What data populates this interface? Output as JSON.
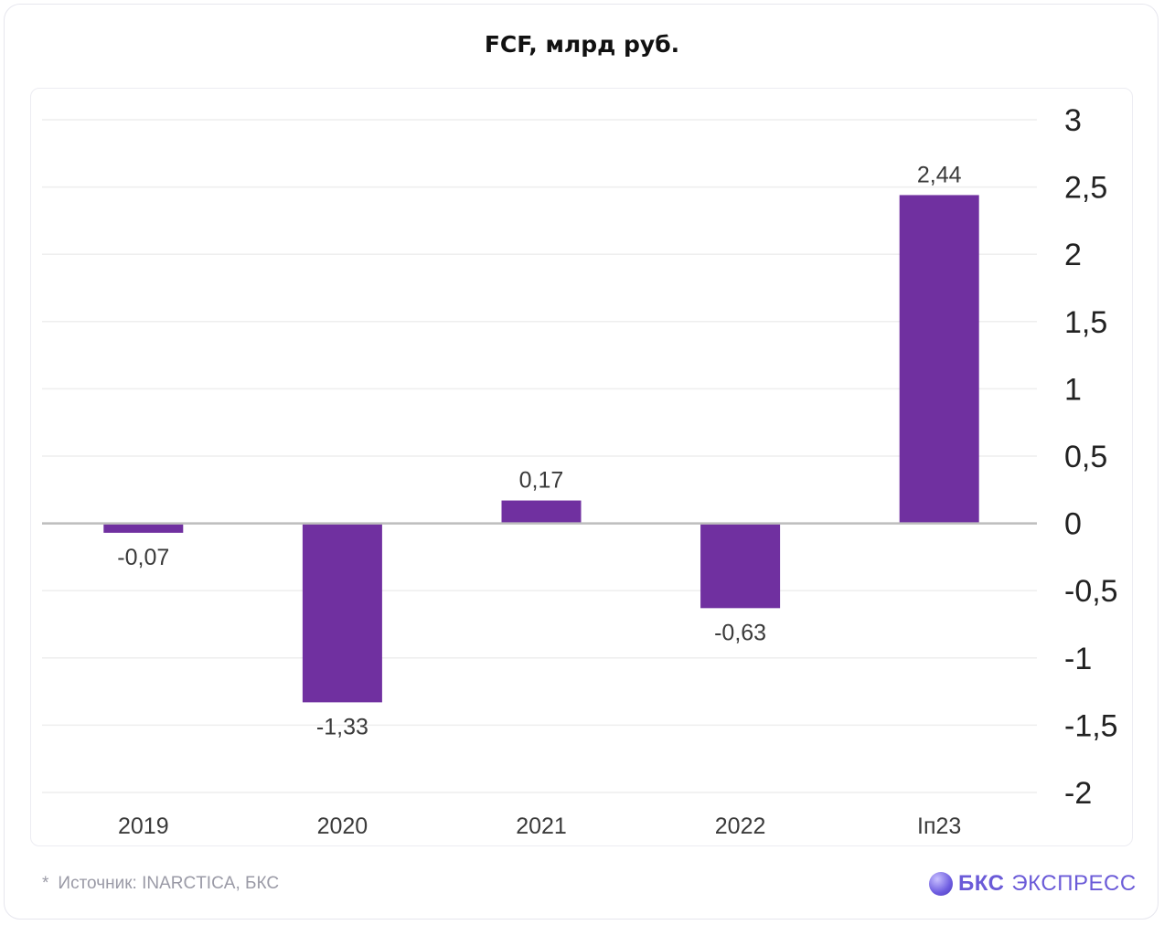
{
  "title": "FCF, млрд руб.",
  "source": {
    "star": "*",
    "text": "Источник: INARCTICA, БКС"
  },
  "brand": {
    "icon": "bks-logo-icon",
    "part1": "БКС",
    "part2": "ЭКСПРЕСС"
  },
  "colors": {
    "bar": "#7030A0",
    "grid": "#eeeeee",
    "zero": "#bdbdbd",
    "label": "#3a3a3a",
    "brand": "#6b5bd8"
  },
  "chart_data": {
    "type": "bar",
    "title": "FCF, млрд руб.",
    "categories": [
      "2019",
      "2020",
      "2021",
      "2022",
      "Iп23"
    ],
    "values": [
      -0.07,
      -1.33,
      0.17,
      -0.63,
      2.44
    ],
    "value_labels": [
      "-0,07",
      "-1,33",
      "0,17",
      "-0,63",
      "2,44"
    ],
    "y_ticks": [
      3,
      2.5,
      2,
      1.5,
      1,
      0.5,
      0,
      -0.5,
      -1,
      -1.5,
      -2
    ],
    "y_tick_labels": [
      "3",
      "2,5",
      "2",
      "1,5",
      "1",
      "0,5",
      "0",
      "-0,5",
      "-1",
      "-1,5",
      "-2"
    ],
    "ylim": [
      -2,
      3
    ],
    "y_axis_side": "right",
    "grid": true,
    "legend": "none"
  }
}
